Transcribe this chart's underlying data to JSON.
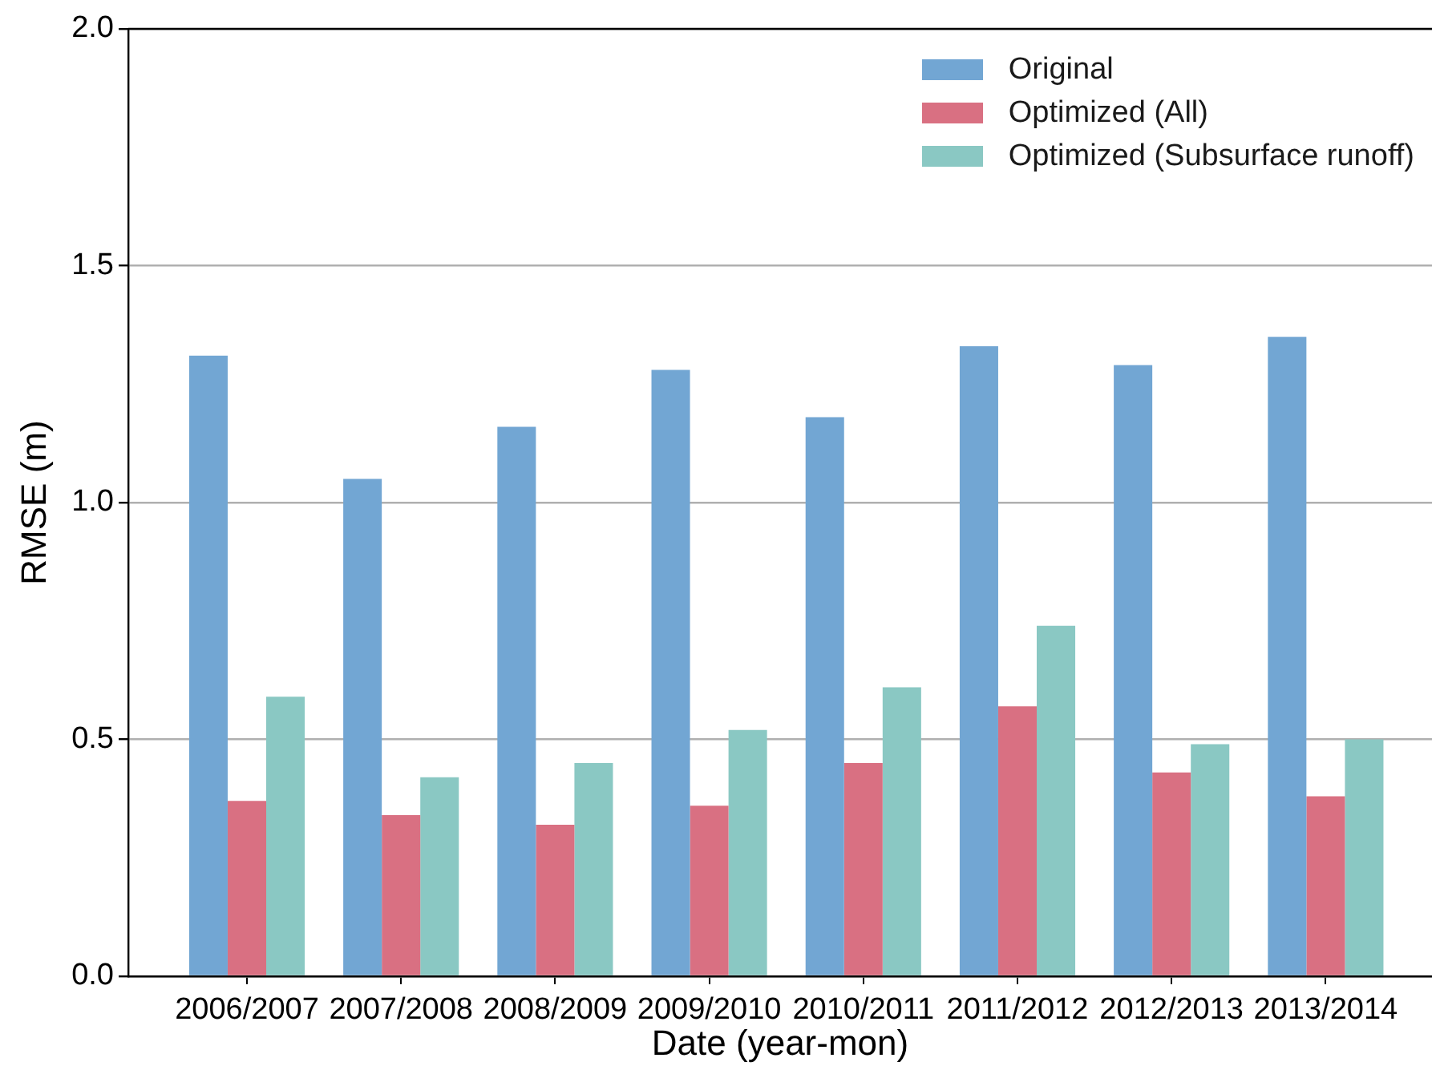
{
  "chart_data": {
    "type": "bar",
    "xlabel": "Date (year-mon)",
    "ylabel": "RMSE (m)",
    "categories": [
      "2006/2007",
      "2007/2008",
      "2008/2009",
      "2009/2010",
      "2010/2011",
      "2011/2012",
      "2012/2013",
      "2013/2014"
    ],
    "series": [
      {
        "name": "Original",
        "color": "#72a6d3",
        "values": [
          1.31,
          1.05,
          1.16,
          1.28,
          1.18,
          1.33,
          1.29,
          1.35
        ]
      },
      {
        "name": "Optimized (All)",
        "color": "#d97082",
        "values": [
          0.37,
          0.34,
          0.32,
          0.36,
          0.45,
          0.57,
          0.43,
          0.38
        ]
      },
      {
        "name": "Optimized (Subsurface runoff)",
        "color": "#8ac8c3",
        "values": [
          0.59,
          0.42,
          0.45,
          0.52,
          0.61,
          0.74,
          0.49,
          0.5
        ]
      }
    ],
    "ylim": [
      0,
      2
    ],
    "yticks": [
      {
        "value": 0,
        "label": "0.0"
      },
      0.5,
      {
        "value": 1,
        "label": "1.0"
      },
      1.5,
      {
        "value": 2,
        "label": "2.0"
      }
    ],
    "grid": "y",
    "legend": "top right"
  }
}
